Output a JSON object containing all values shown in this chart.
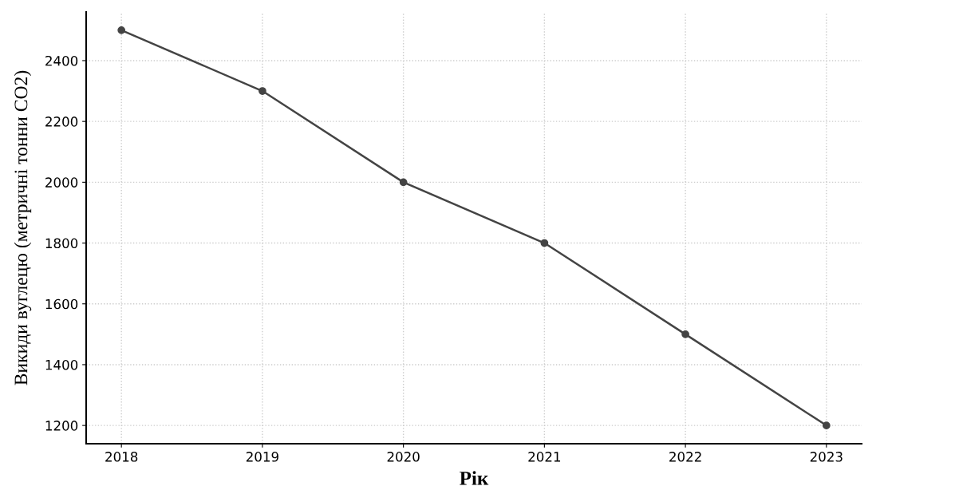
{
  "chart_data": {
    "type": "line",
    "xlabel": "Рік",
    "ylabel": "Викиди вуглецю (метричні тонни CO2)",
    "x": [
      2018,
      2019,
      2020,
      2021,
      2022,
      2023
    ],
    "series": [
      {
        "color": "#444444",
        "values": [
          2500,
          2300,
          2000,
          1800,
          1500,
          1200
        ]
      }
    ],
    "xlim": [
      2017.75,
      2023.25
    ],
    "xticks": [
      2018,
      2019,
      2020,
      2021,
      2022,
      2023
    ],
    "ylim": [
      1140,
      2560
    ],
    "yticks": [
      1200,
      1400,
      1600,
      1800,
      2000,
      2200,
      2400
    ],
    "grid": true,
    "marker": "circle",
    "line_style": "solid"
  }
}
